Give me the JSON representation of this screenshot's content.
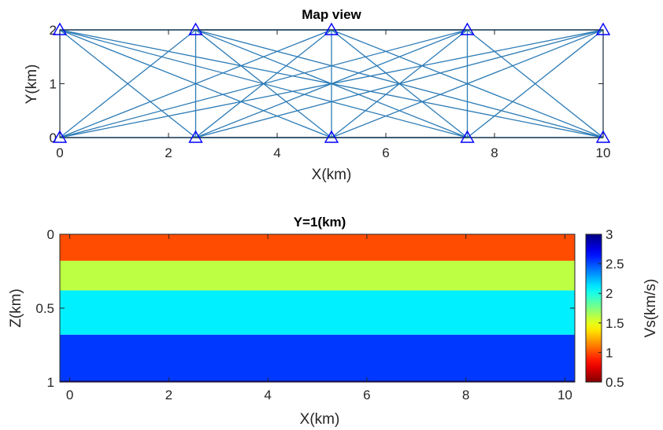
{
  "chart_data": [
    {
      "type": "scatter",
      "title": "Map view",
      "xlabel": "X(km)",
      "ylabel": "Y(km)",
      "xlim": [
        0,
        10
      ],
      "ylim": [
        0,
        2
      ],
      "xticks": [
        0,
        2,
        4,
        6,
        8,
        10
      ],
      "yticks": [
        0,
        1,
        2
      ],
      "grid": false,
      "stations": {
        "x": [
          0,
          2.5,
          5,
          7.5,
          10,
          0,
          2.5,
          5,
          7.5,
          10
        ],
        "y": [
          0,
          0,
          0,
          0,
          0,
          2,
          2,
          2,
          2,
          2
        ]
      },
      "paths": "all station pairs",
      "colors": {
        "paths": "#2c7bb6",
        "stations": "#0000ff"
      }
    },
    {
      "type": "heatmap",
      "title": "Y=1(km)",
      "xlabel": "X(km)",
      "ylabel": "Z(km)",
      "xlim": [
        -0.2,
        10.2
      ],
      "ylim": [
        0,
        1
      ],
      "y_reversed": true,
      "xticks": [
        0,
        2,
        4,
        6,
        8,
        10
      ],
      "yticks": [
        0,
        0.5,
        1
      ],
      "ytick_labels": [
        "0",
        "0.5",
        "1"
      ],
      "layers": [
        {
          "z_top": 0,
          "z_bottom": 0.18,
          "vs": 1.0
        },
        {
          "z_top": 0.18,
          "z_bottom": 0.38,
          "vs": 1.6
        },
        {
          "z_top": 0.38,
          "z_bottom": 0.68,
          "vs": 2.1
        },
        {
          "z_top": 0.68,
          "z_bottom": 0.99,
          "vs": 2.55
        },
        {
          "z_top": 0.99,
          "z_bottom": 1.0,
          "vs": 3.0
        }
      ],
      "colorbar": {
        "label": "Vs(km/s)",
        "range": [
          0.5,
          3
        ],
        "ticks": [
          0.5,
          1,
          1.5,
          2,
          2.5,
          3
        ],
        "colormap": "jet",
        "reversed": true
      }
    }
  ]
}
